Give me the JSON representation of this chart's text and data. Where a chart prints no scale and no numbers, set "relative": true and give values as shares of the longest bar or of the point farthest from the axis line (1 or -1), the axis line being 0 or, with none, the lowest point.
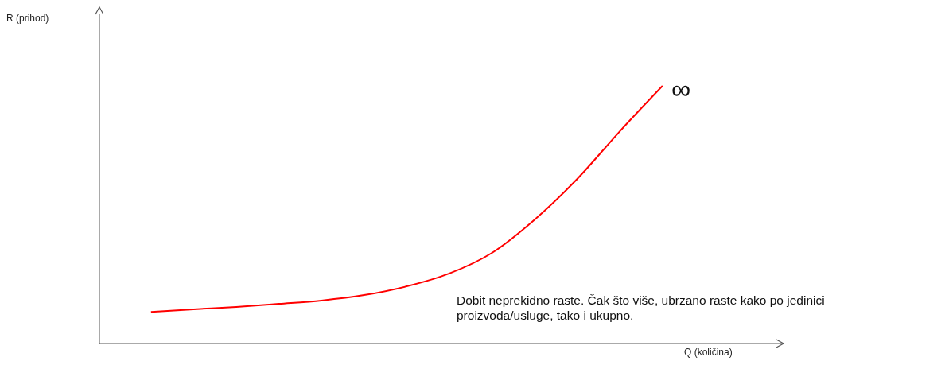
{
  "chart_data": {
    "type": "line",
    "relative": true,
    "xlabel": "Q (količina)",
    "categories": [
      null,
      null,
      null,
      null,
      null,
      null,
      null,
      null,
      null,
      null,
      null,
      null,
      null
    ],
    "series": [
      {
        "color": "#ff0000",
        "values": [
          0.123,
          0.133,
          0.142,
          0.154,
          0.167,
          0.188,
          0.222,
          0.272,
          0.352,
          0.481,
          0.639,
          0.824,
          1
        ]
      }
    ],
    "annotations": [
      "∞",
      "Dobit neprekidno raste. Čak što više, ubrzano raste kako po jedinici proizvoda/usluge, tako i ukupno.",
      "R (prihod)"
    ],
    "grid": false,
    "legend": false,
    "marker": "none",
    "line_style": "solid"
  }
}
